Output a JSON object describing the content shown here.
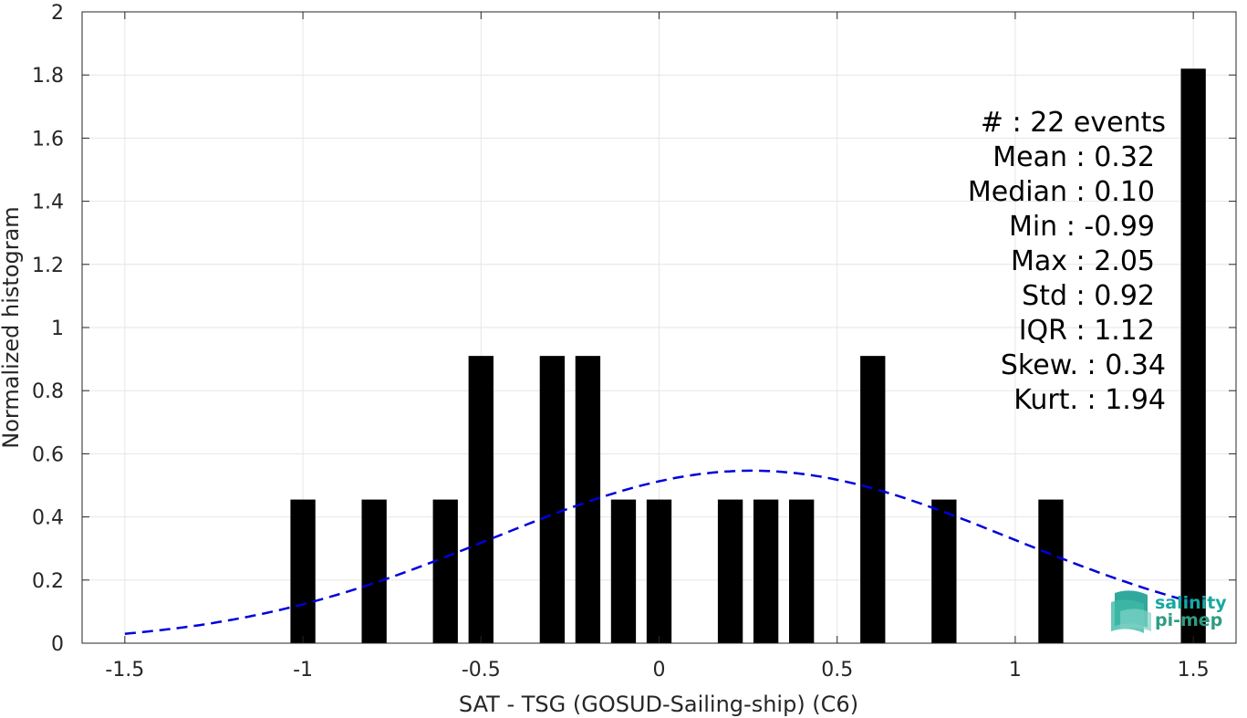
{
  "chart_data": {
    "type": "bar",
    "xlabel": "SAT - TSG (GOSUD-Sailing-ship) (C6)",
    "ylabel": "Normalized histogram",
    "xlim": [
      -1.62,
      1.62
    ],
    "ylim": [
      0,
      2
    ],
    "xticks": [
      -1.5,
      -1,
      -0.5,
      0,
      0.5,
      1,
      1.5
    ],
    "xtick_labels": [
      "-1.5",
      "-1",
      "-0.5",
      "0",
      "0.5",
      "1",
      "1.5"
    ],
    "yticks": [
      0,
      0.2,
      0.4,
      0.6,
      0.8,
      1,
      1.2,
      1.4,
      1.6,
      1.8,
      2
    ],
    "ytick_labels": [
      "0",
      "0.2",
      "0.4",
      "0.6",
      "0.8",
      "1",
      "1.2",
      "1.4",
      "1.6",
      "1.8",
      "2"
    ],
    "grid": true,
    "bar_width": 0.07,
    "bars": [
      {
        "x": -1.0,
        "y": 0.455
      },
      {
        "x": -0.8,
        "y": 0.455
      },
      {
        "x": -0.6,
        "y": 0.455
      },
      {
        "x": -0.5,
        "y": 0.91
      },
      {
        "x": -0.3,
        "y": 0.91
      },
      {
        "x": -0.2,
        "y": 0.91
      },
      {
        "x": -0.1,
        "y": 0.455
      },
      {
        "x": 0.0,
        "y": 0.455
      },
      {
        "x": 0.2,
        "y": 0.455
      },
      {
        "x": 0.3,
        "y": 0.455
      },
      {
        "x": 0.4,
        "y": 0.455
      },
      {
        "x": 0.6,
        "y": 0.91
      },
      {
        "x": 0.8,
        "y": 0.455
      },
      {
        "x": 1.1,
        "y": 0.455
      },
      {
        "x": 1.5,
        "y": 1.82
      }
    ],
    "bar_color": "#000000",
    "fit_curve": {
      "style": "dashed",
      "color": "#0000dd",
      "mean": 0.26,
      "std": 0.73,
      "x_range": [
        -1.5,
        1.5
      ]
    },
    "stats": [
      "#  : 22 events",
      "Mean : 0.32",
      "Median : 0.10",
      "Min : -0.99",
      "Max : 2.05",
      "Std : 0.92",
      "IQR : 1.12",
      "Skew. : 0.34",
      "Kurt. : 1.94"
    ]
  },
  "logo": {
    "line1": "salinity",
    "line2": "pi-mep",
    "color1": "#17a9a0",
    "color2": "#2e9c84"
  }
}
